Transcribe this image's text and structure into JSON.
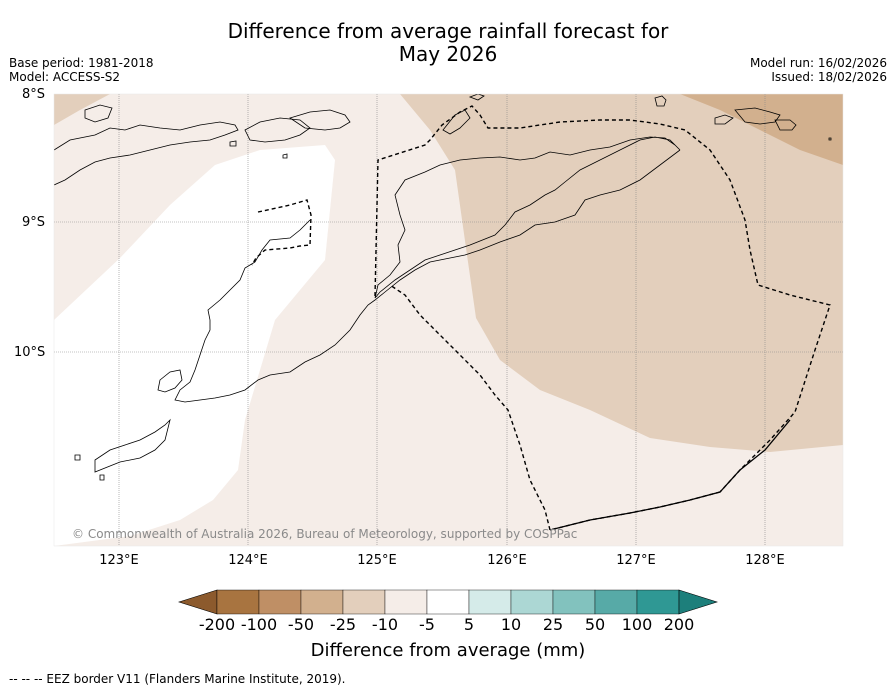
{
  "title": {
    "line1": "Difference from average rainfall forecast for",
    "line2": "May 2026"
  },
  "meta_left": {
    "base_period": "Base period: 1981-2018",
    "model": "Model: ACCESS-S2"
  },
  "meta_right": {
    "model_run": "Model run: 16/02/2026",
    "issued": "Issued: 18/02/2026"
  },
  "map": {
    "lat_labels": [
      "8°S",
      "9°S",
      "10°S"
    ],
    "lon_labels": [
      "123°E",
      "124°E",
      "125°E",
      "126°E",
      "127°E",
      "128°E"
    ],
    "copyright": "© Commonwealth of Australia 2026, Bureau of Meteorology, supported by COSPPac"
  },
  "colorbar": {
    "title": "Difference from average (mm)",
    "ticks": [
      "-200",
      "-100",
      "-50",
      "-25",
      "-10",
      "-5",
      "5",
      "10",
      "25",
      "50",
      "100",
      "200"
    ],
    "colors": [
      "#8c5a2d",
      "#a87440",
      "#bf8f65",
      "#d2b08e",
      "#e3cfbc",
      "#f5ede8",
      "#ffffff",
      "#d5ebe9",
      "#acd7d4",
      "#82c2be",
      "#57aaa7",
      "#2f9894",
      "#1d7f7b"
    ]
  },
  "footnote": "--  --  -- EEZ border V11 (Flanders Marine Institute, 2019)."
}
